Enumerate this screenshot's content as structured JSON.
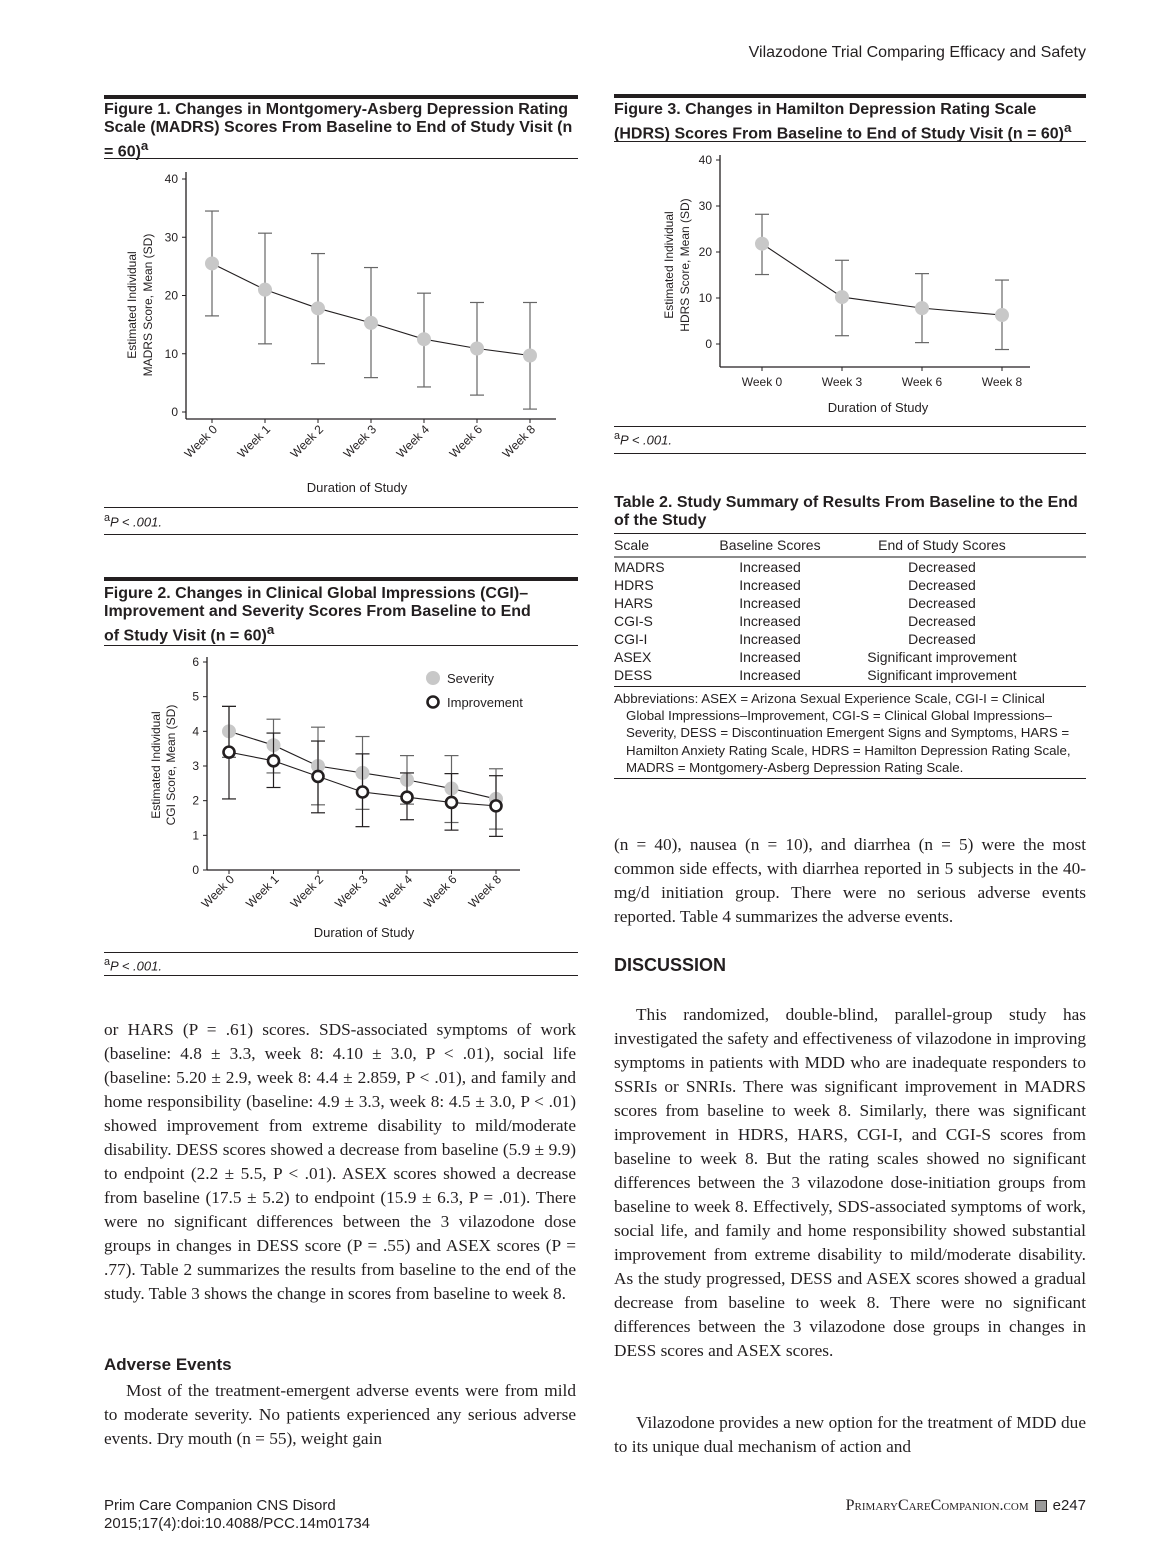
{
  "running_header": "Vilazodone Trial Comparing Efficacy and Safety",
  "figure1": {
    "title": "Figure 1. Changes in Montgomery-Asberg Depression Rating Scale (MADRS) Scores From Baseline to End of Study Visit (n = 60)",
    "title_sup": "a",
    "footnote": "P < .001.",
    "footnote_sup": "a"
  },
  "figure2": {
    "title": "Figure 2. Changes in Clinical Global Impressions (CGI)–Improvement and Severity Scores From Baseline to End of Study Visit (n = 60)",
    "title_sup": "a",
    "footnote": "P < .001.",
    "footnote_sup": "a"
  },
  "figure3": {
    "title": "Figure 3. Changes in Hamilton Depression Rating Scale (HDRS) Scores From Baseline to End of Study Visit (n = 60)",
    "title_sup": "a",
    "footnote": "P < .001.",
    "footnote_sup": "a"
  },
  "chart_data": [
    {
      "type": "line",
      "title": "Figure 1. Changes in MADRS Scores From Baseline to End of Study Visit (n = 60)",
      "xlabel": "Duration of Study",
      "ylabel": [
        "Estimated Individual",
        "MADRS Score, Mean (SD)"
      ],
      "categories": [
        "Week 0",
        "Week 1",
        "Week 2",
        "Week 3",
        "Week 4",
        "Week 6",
        "Week 8"
      ],
      "yticks": [
        0,
        10,
        20,
        30,
        40
      ],
      "ylim": [
        0,
        40
      ],
      "series": [
        {
          "name": "MADRS",
          "marker": "filled-gray",
          "values": [
            25.5,
            21.0,
            17.8,
            15.3,
            12.5,
            10.9,
            9.7
          ],
          "upper": [
            34.5,
            30.7,
            27.2,
            24.8,
            20.4,
            18.8,
            18.8
          ],
          "lower": [
            16.5,
            11.7,
            8.3,
            5.9,
            4.3,
            2.9,
            0.5
          ]
        }
      ]
    },
    {
      "type": "line",
      "title": "Figure 2. Changes in CGI–Improvement and Severity Scores From Baseline to End of Study Visit (n = 60)",
      "xlabel": "Duration of Study",
      "ylabel": [
        "Estimated Individual",
        "CGI Score, Mean (SD)"
      ],
      "categories": [
        "Week 0",
        "Week 1",
        "Week 2",
        "Week 3",
        "Week 4",
        "Week 6",
        "Week 8"
      ],
      "yticks": [
        0,
        1,
        2,
        3,
        4,
        5,
        6
      ],
      "ylim": [
        0,
        6
      ],
      "legend": "top-right",
      "series": [
        {
          "name": "Severity",
          "marker": "filled-gray",
          "values": [
            4.0,
            3.6,
            3.0,
            2.8,
            2.6,
            2.35,
            2.05
          ],
          "upper": [
            4.72,
            4.35,
            4.12,
            3.85,
            3.3,
            3.3,
            2.92
          ],
          "lower": [
            3.25,
            2.8,
            1.88,
            1.75,
            1.9,
            1.37,
            1.18
          ]
        },
        {
          "name": "Improvement",
          "marker": "open-black",
          "values": [
            3.4,
            3.15,
            2.7,
            2.25,
            2.1,
            1.95,
            1.85
          ],
          "upper": [
            4.72,
            3.95,
            3.72,
            3.35,
            2.8,
            2.78,
            2.72
          ],
          "lower": [
            2.05,
            2.38,
            1.65,
            1.25,
            1.45,
            1.15,
            0.97
          ]
        }
      ]
    },
    {
      "type": "line",
      "title": "Figure 3. Changes in HDRS Scores From Baseline to End of Study Visit (n = 60)",
      "xlabel": "Duration of Study",
      "ylabel": [
        "Estimated Individual",
        "HDRS Score, Mean (SD)"
      ],
      "categories": [
        "Week 0",
        "Week 3",
        "Week 6",
        "Week 8"
      ],
      "yticks": [
        0,
        10,
        20,
        30,
        40
      ],
      "ylim": [
        -5,
        40
      ],
      "series": [
        {
          "name": "HDRS",
          "marker": "filled-gray",
          "values": [
            21.8,
            10.2,
            7.8,
            6.3
          ],
          "upper": [
            28.2,
            18.2,
            15.3,
            13.9
          ],
          "lower": [
            15.1,
            1.8,
            0.3,
            -1.2
          ]
        }
      ]
    }
  ],
  "table2": {
    "title": "Table 2. Study Summary of Results From Baseline to the End of the Study",
    "headers": [
      "Scale",
      "Baseline Scores",
      "End of Study Scores"
    ],
    "rows": [
      [
        "MADRS",
        "Increased",
        "Decreased"
      ],
      [
        "HDRS",
        "Increased",
        "Decreased"
      ],
      [
        "HARS",
        "Increased",
        "Decreased"
      ],
      [
        "CGI-S",
        "Increased",
        "Decreased"
      ],
      [
        "CGI-I",
        "Increased",
        "Decreased"
      ],
      [
        "ASEX",
        "Increased",
        "Significant improvement"
      ],
      [
        "DESS",
        "Increased",
        "Significant improvement"
      ]
    ],
    "abbreviations": "Abbreviations: ASEX = Arizona Sexual Experience Scale, CGI-I = Clinical Global Impressions–Improvement, CGI-S = Clinical Global Impressions–Severity, DESS = Discontinuation Emergent Signs and Symptoms, HARS = Hamilton Anxiety Rating Scale, HDRS = Hamilton Depression Rating Scale, MADRS = Montgomery-Asberg Depression Rating Scale."
  },
  "left_column": {
    "para1": "or HARS (P = .61) scores. SDS-associated symptoms of work (baseline: 4.8 ± 3.3, week 8: 4.10 ± 3.0, P < .01), social life (baseline: 5.20 ± 2.9, week 8: 4.4 ± 2.859, P < .01), and family and home responsibility (baseline: 4.9 ± 3.3, week 8: 4.5 ± 3.0, P < .01) showed improvement from extreme disability to mild/moderate disability. DESS scores showed a decrease from baseline (5.9 ± 9.9) to endpoint (2.2 ± 5.5, P < .01). ASEX scores showed a decrease from baseline (17.5 ± 5.2) to endpoint (15.9 ± 6.3, P = .01). There were no significant differences between the 3 vilazodone dose groups in changes in DESS score (P = .55) and ASEX scores (P = .77). Table 2 summarizes the results from baseline to the end of the study. Table 3 shows the change in scores from baseline to week 8.",
    "heading": "Adverse Events",
    "para2": "Most of the treatment-emergent adverse events were from mild to moderate severity. No patients experienced any serious adverse events. Dry mouth (n = 55), weight gain"
  },
  "right_column": {
    "para1": "(n = 40), nausea (n = 10), and diarrhea (n = 5) were the most common side effects, with diarrhea reported in 5 subjects in the 40-mg/d initiation group. There were no serious adverse events reported. Table 4 summarizes the adverse events.",
    "heading": "DISCUSSION",
    "para2": "This randomized, double-blind, parallel-group study has investigated the safety and effectiveness of vilazodone in improving symptoms in patients with MDD who are inadequate responders to SSRIs or SNRIs. There was significant improvement in MADRS scores from baseline to week 8. Similarly, there was significant improvement in HDRS, HARS, CGI-I, and CGI-S scores from baseline to week 8. But the rating scales showed no significant differences between the 3 vilazodone dose-initiation groups from baseline to week 8. Effectively, SDS-associated symptoms of work, social life, and family and home responsibility showed substantial improvement from extreme disability to mild/moderate disability. As the study progressed, DESS and ASEX scores showed a gradual decrease from baseline to week 8. There were no significant differences between the 3 vilazodone dose groups in changes in DESS scores and ASEX scores.",
    "para3": "Vilazodone provides a new option for the treatment of MDD due to its unique dual mechanism of action and"
  },
  "footer": {
    "journal": "Prim Care Companion CNS Disord",
    "citation": "2015;17(4):doi:10.4088/PCC.14m01734",
    "site": "PrimaryCareCompanion.com",
    "page": "e247"
  }
}
